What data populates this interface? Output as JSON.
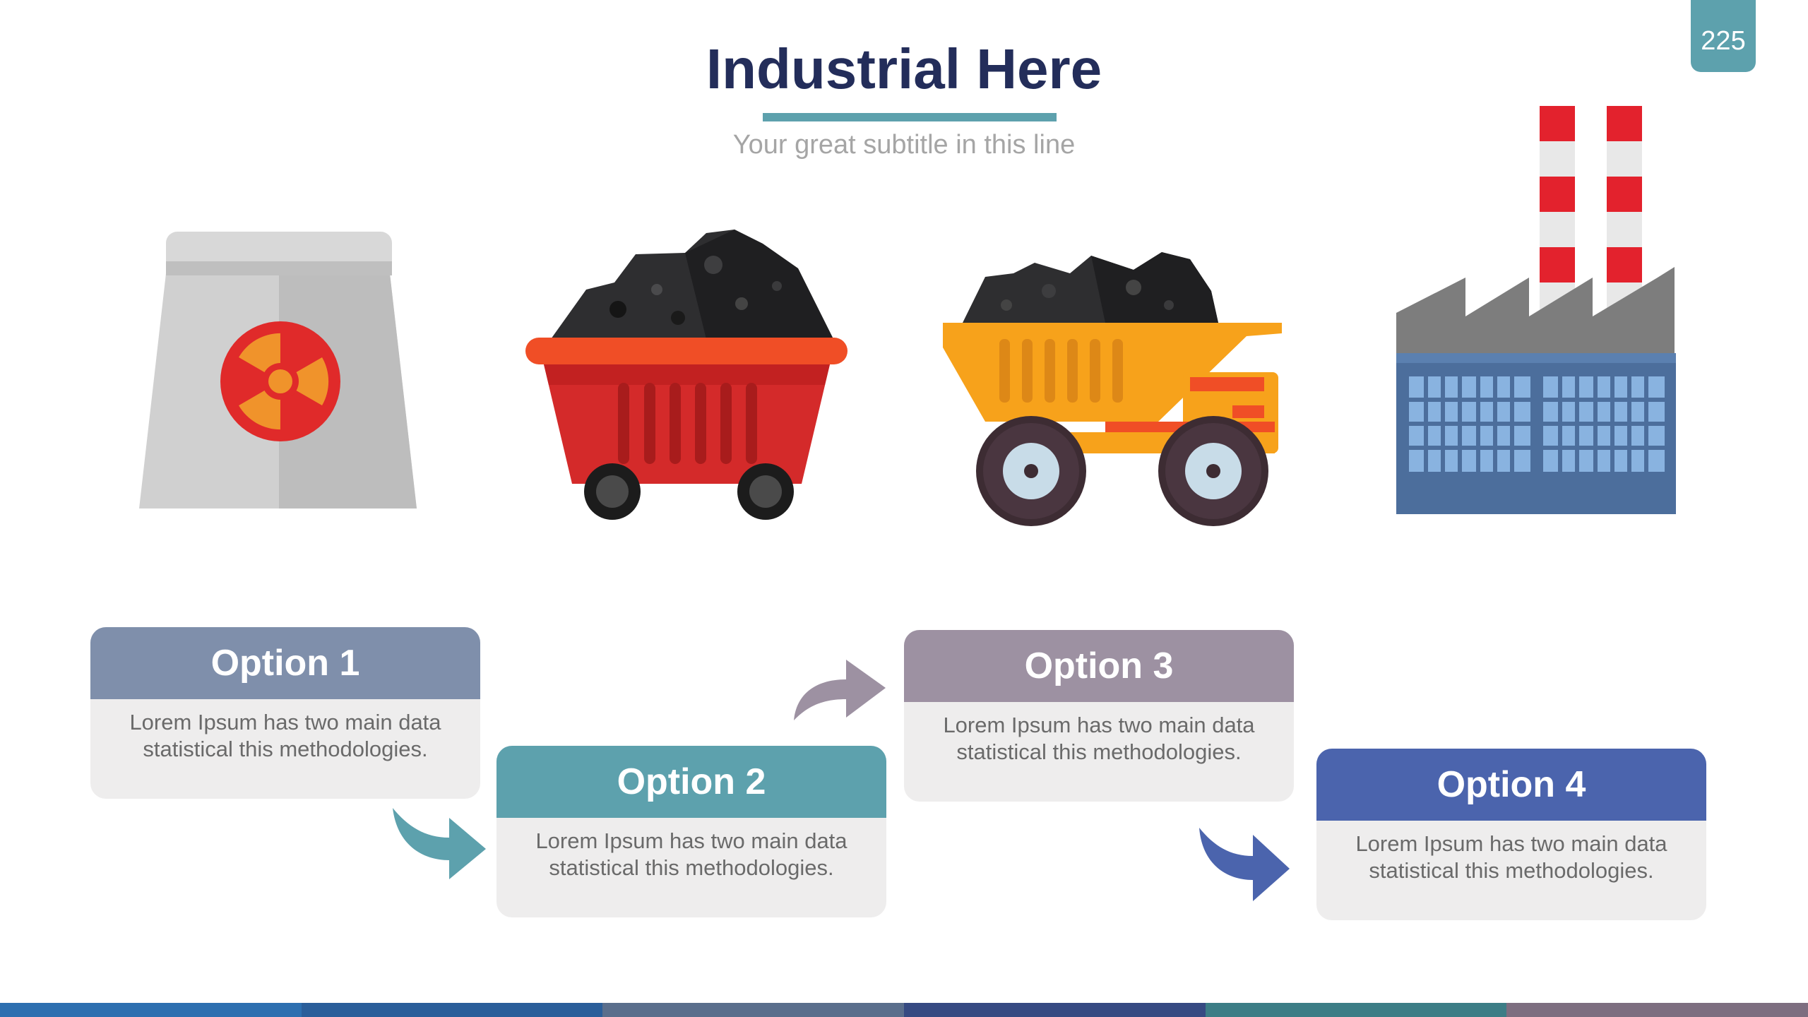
{
  "page_number": "225",
  "title": "Industrial Here",
  "subtitle": "Your great subtitle in this line",
  "icons": [
    "nuclear-plant-icon",
    "coal-cart-icon",
    "dump-truck-icon",
    "factory-icon"
  ],
  "options": [
    {
      "title": "Option 1",
      "text": "Lorem Ipsum has two main data statistical this methodologies.",
      "color": "#7f8fab"
    },
    {
      "title": "Option 2",
      "text": "Lorem Ipsum has two main data statistical this methodologies.",
      "color": "#5da1ad"
    },
    {
      "title": "Option 3",
      "text": "Lorem Ipsum has two main data statistical this methodologies.",
      "color": "#9d91a2"
    },
    {
      "title": "Option 4",
      "text": "Lorem Ipsum has two main data statistical this methodologies.",
      "color": "#4b64ad"
    }
  ],
  "colors": {
    "accent": "#5da1ad",
    "title": "#232d5a",
    "footer": [
      "#2d6fb0",
      "#2a5e9a",
      "#5a6e8c",
      "#364a82",
      "#3c7d86",
      "#7d6e80"
    ]
  }
}
